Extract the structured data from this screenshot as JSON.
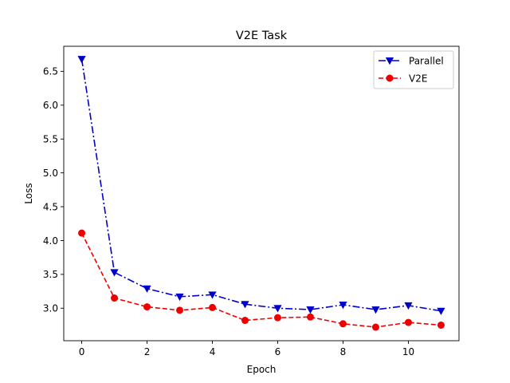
{
  "chart_data": {
    "type": "line",
    "title": "V2E Task",
    "xlabel": "Epoch",
    "ylabel": "Loss",
    "xlim": [
      -0.55,
      11.55
    ],
    "ylim": [
      2.52,
      6.87
    ],
    "x_ticks": [
      0,
      2,
      4,
      6,
      8,
      10
    ],
    "y_ticks": [
      3.0,
      3.5,
      4.0,
      4.5,
      5.0,
      5.5,
      6.0,
      6.5
    ],
    "x_tick_labels": [
      "0",
      "2",
      "4",
      "6",
      "8",
      "10"
    ],
    "y_tick_labels": [
      "3.0",
      "3.5",
      "4.0",
      "4.5",
      "5.0",
      "5.5",
      "6.0",
      "6.5"
    ],
    "grid": false,
    "legend_position": "top-right",
    "x": [
      0,
      1,
      2,
      3,
      4,
      5,
      6,
      7,
      8,
      9,
      10,
      11
    ],
    "series": [
      {
        "name": "Parallel",
        "color": "#0000cc",
        "line_style": "dash-dot",
        "marker": "triangle-down",
        "values": [
          6.68,
          3.53,
          3.29,
          3.17,
          3.2,
          3.06,
          3.0,
          2.98,
          3.05,
          2.98,
          3.04,
          2.96
        ]
      },
      {
        "name": "V2E",
        "color": "#ee0000",
        "line_style": "dashed",
        "marker": "circle",
        "values": [
          4.11,
          3.15,
          3.02,
          2.97,
          3.01,
          2.82,
          2.86,
          2.87,
          2.77,
          2.72,
          2.79,
          2.75
        ]
      }
    ]
  }
}
